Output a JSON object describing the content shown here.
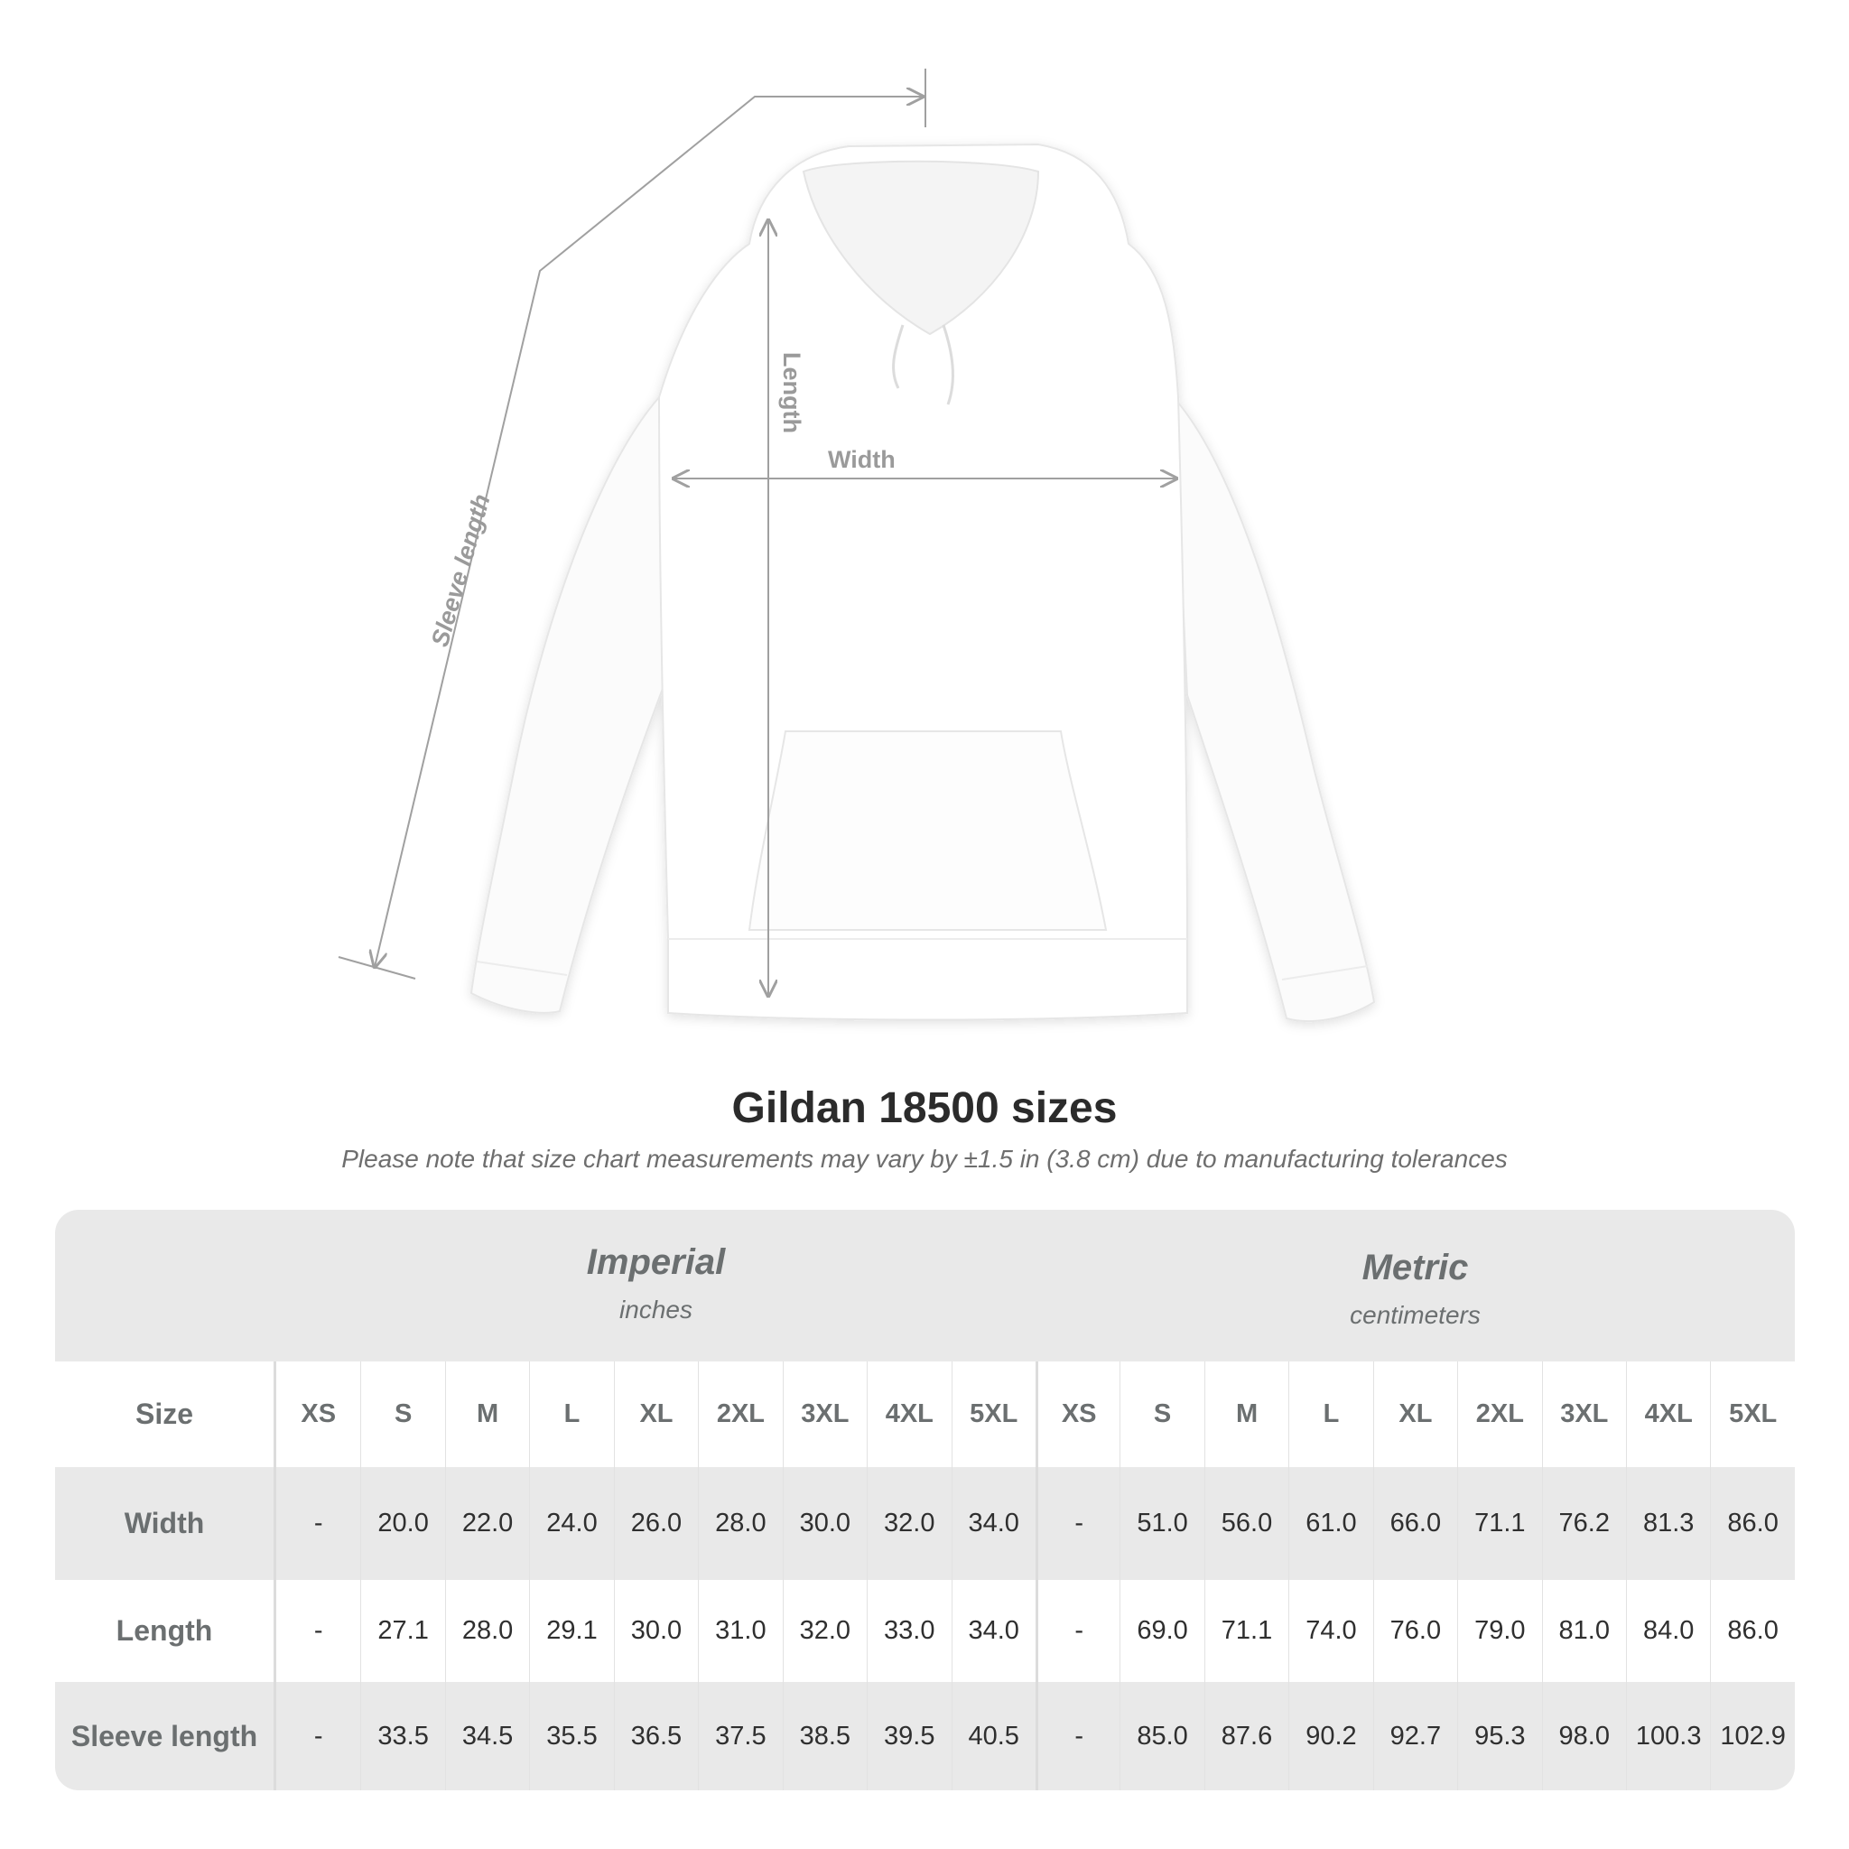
{
  "diagram": {
    "labels": {
      "length": "Length",
      "width": "Width",
      "sleeve_length": "Sleeve length"
    },
    "garment_color": "#ffffff",
    "line_color": "#a0a0a0"
  },
  "title": "Gildan 18500 sizes",
  "subtitle": "Please note that size chart measurements may vary by ±1.5 in (3.8 cm) due to manufacturing tolerances",
  "table": {
    "imperial": {
      "name": "Imperial",
      "unit": "inches"
    },
    "metric": {
      "name": "Metric",
      "unit": "centimeters"
    },
    "size_label": "Size",
    "sizes": [
      "XS",
      "S",
      "M",
      "L",
      "XL",
      "2XL",
      "3XL",
      "4XL",
      "5XL"
    ],
    "rows": [
      {
        "label": "Width",
        "imperial": [
          "-",
          "20.0",
          "22.0",
          "24.0",
          "26.0",
          "28.0",
          "30.0",
          "32.0",
          "34.0"
        ],
        "metric": [
          "-",
          "51.0",
          "56.0",
          "61.0",
          "66.0",
          "71.1",
          "76.2",
          "81.3",
          "86.0"
        ]
      },
      {
        "label": "Length",
        "imperial": [
          "-",
          "27.1",
          "28.0",
          "29.1",
          "30.0",
          "31.0",
          "32.0",
          "33.0",
          "34.0"
        ],
        "metric": [
          "-",
          "69.0",
          "71.1",
          "74.0",
          "76.0",
          "79.0",
          "81.0",
          "84.0",
          "86.0"
        ]
      },
      {
        "label": "Sleeve length",
        "imperial": [
          "-",
          "33.5",
          "34.5",
          "35.5",
          "36.5",
          "37.5",
          "38.5",
          "39.5",
          "40.5"
        ],
        "metric": [
          "-",
          "85.0",
          "87.6",
          "90.2",
          "92.7",
          "95.3",
          "98.0",
          "100.3",
          "102.9"
        ]
      }
    ],
    "band_color": "#e9e9e9"
  }
}
